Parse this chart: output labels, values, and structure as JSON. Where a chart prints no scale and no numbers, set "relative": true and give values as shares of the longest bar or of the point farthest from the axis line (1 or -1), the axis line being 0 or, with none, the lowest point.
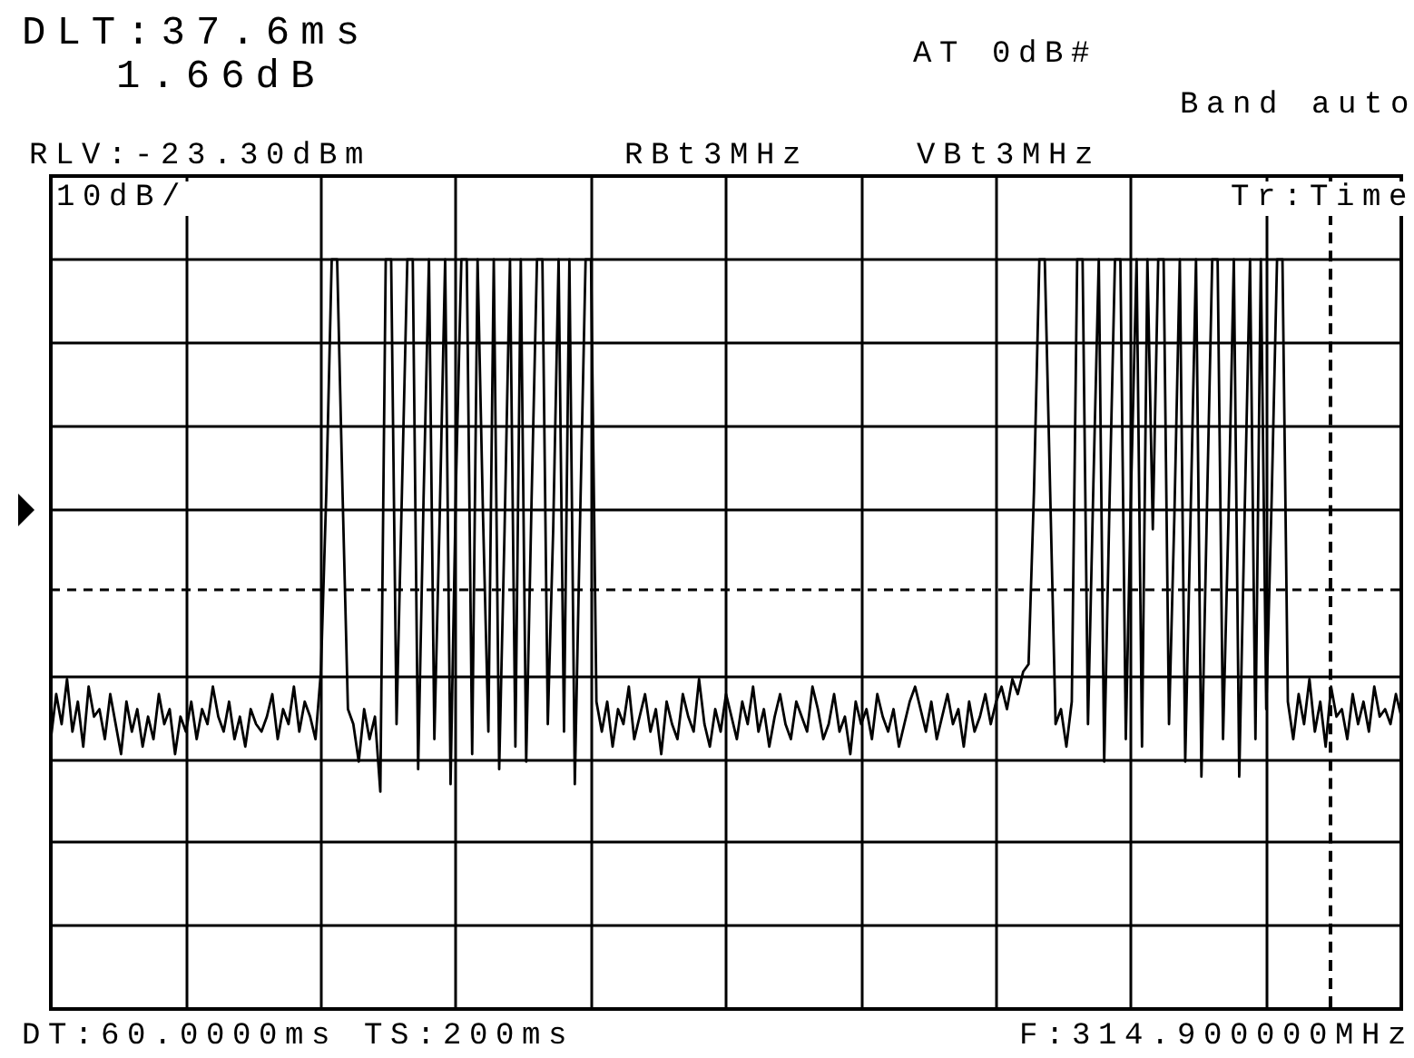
{
  "chart_data": {
    "type": "line",
    "relative": true,
    "annotations": [
      "DLT:37.6ms",
      "1.66dB",
      "RLV:-23.30dBm",
      "AT 0dB#",
      "Band auto",
      "RBt3MHz",
      "VBt3MHz",
      "10dB/",
      "Tr:Time",
      "DT:60.0000ms TS:200ms",
      "F:314.900000MHz"
    ],
    "categories": [
      null,
      null,
      null,
      null,
      null,
      null,
      null,
      null,
      null,
      null,
      null,
      null,
      null,
      null,
      null,
      null,
      null,
      null,
      null,
      null,
      null,
      null,
      null,
      null,
      null,
      null,
      null,
      null,
      null,
      null,
      null,
      null,
      null,
      null,
      null,
      null,
      null,
      null,
      null,
      null,
      null,
      null,
      null,
      null,
      null,
      null,
      null,
      null,
      null,
      null,
      null,
      null,
      null,
      null,
      null,
      null,
      null,
      null,
      null,
      null,
      null,
      null,
      null,
      null,
      null,
      null,
      null,
      null,
      null,
      null,
      null,
      null,
      null,
      null,
      null,
      null,
      null,
      null,
      null,
      null,
      null,
      null,
      null,
      null,
      null,
      null,
      null,
      null,
      null,
      null,
      null,
      null,
      null,
      null,
      null,
      null,
      null,
      null,
      null,
      null,
      null,
      null,
      null,
      null,
      null,
      null,
      null,
      null,
      null,
      null,
      null,
      null,
      null,
      null,
      null,
      null,
      null,
      null,
      null,
      null,
      null,
      null,
      null,
      null,
      null,
      null,
      null,
      null,
      null,
      null,
      null,
      null,
      null,
      null,
      null,
      null,
      null,
      null,
      null,
      null,
      null,
      null,
      null,
      null,
      null,
      null,
      null,
      null,
      null,
      null,
      null,
      null,
      null,
      null,
      null,
      null,
      null,
      null,
      null,
      null,
      null,
      null,
      null,
      null,
      null,
      null,
      null,
      null,
      null,
      null,
      null,
      null,
      null,
      null,
      null,
      null,
      null,
      null,
      null,
      null,
      null,
      null,
      null,
      null,
      null,
      null,
      null,
      null,
      null,
      null,
      null,
      null,
      null,
      null,
      null,
      null,
      null,
      null,
      null,
      null,
      null,
      null,
      null,
      null,
      null,
      null,
      null,
      null,
      null,
      null,
      null,
      null,
      null,
      null,
      null,
      null,
      null,
      null,
      null,
      null,
      null,
      null,
      null,
      null,
      null,
      null,
      null,
      null,
      null,
      null,
      null,
      null,
      null,
      null,
      null,
      null,
      null,
      null,
      null,
      null,
      null,
      null,
      null,
      null,
      null,
      null,
      null,
      null,
      null,
      null,
      null
    ],
    "grid": true,
    "ref_lines": [
      {
        "axis": "y",
        "value": 0.556,
        "line_style": "dashed",
        "color": "#000000"
      }
    ],
    "series": [
      {
        "color": "#000000",
        "values": [
          0.36,
          0.42,
          0.38,
          0.44,
          0.37,
          0.41,
          0.35,
          0.43,
          0.39,
          0.4,
          0.36,
          0.42,
          0.38,
          0.34,
          0.41,
          0.37,
          0.4,
          0.35,
          0.39,
          0.36,
          0.42,
          0.38,
          0.4,
          0.34,
          0.39,
          0.37,
          0.41,
          0.36,
          0.4,
          0.38,
          0.43,
          0.39,
          0.37,
          0.41,
          0.36,
          0.39,
          0.35,
          0.4,
          0.38,
          0.37,
          0.39,
          0.42,
          0.36,
          0.4,
          0.38,
          0.43,
          0.37,
          0.41,
          0.39,
          0.36,
          0.45,
          0.69,
          1,
          1,
          0.69,
          0.4,
          0.38,
          0.33,
          0.4,
          0.36,
          0.39,
          0.29,
          1,
          1,
          0.38,
          0.69,
          1,
          1,
          0.32,
          0.68,
          1,
          0.36,
          0.66,
          1,
          0.3,
          0.7,
          1,
          1,
          0.34,
          1,
          0.66,
          0.37,
          1,
          0.32,
          0.64,
          1,
          0.35,
          1,
          0.33,
          0.68,
          1,
          1,
          0.38,
          0.64,
          1,
          0.37,
          1,
          0.3,
          0.66,
          1,
          1,
          0.41,
          0.37,
          0.41,
          0.35,
          0.4,
          0.38,
          0.43,
          0.36,
          0.39,
          0.42,
          0.37,
          0.4,
          0.34,
          0.41,
          0.38,
          0.36,
          0.42,
          0.39,
          0.37,
          0.44,
          0.38,
          0.35,
          0.4,
          0.37,
          0.42,
          0.39,
          0.36,
          0.41,
          0.38,
          0.43,
          0.37,
          0.4,
          0.35,
          0.39,
          0.42,
          0.38,
          0.36,
          0.41,
          0.39,
          0.37,
          0.43,
          0.4,
          0.36,
          0.38,
          0.42,
          0.37,
          0.39,
          0.34,
          0.41,
          0.38,
          0.4,
          0.36,
          0.42,
          0.39,
          0.37,
          0.4,
          0.35,
          0.38,
          0.41,
          0.43,
          0.4,
          0.37,
          0.41,
          0.36,
          0.39,
          0.42,
          0.38,
          0.4,
          0.35,
          0.41,
          0.37,
          0.39,
          0.42,
          0.38,
          0.41,
          0.43,
          0.4,
          0.44,
          0.42,
          0.45,
          0.46,
          0.69,
          1,
          1,
          0.69,
          0.38,
          0.4,
          0.35,
          0.41,
          1,
          1,
          0.38,
          0.7,
          1,
          0.33,
          0.68,
          1,
          1,
          0.36,
          0.7,
          1,
          0.35,
          1,
          0.64,
          1,
          1,
          0.38,
          0.66,
          1,
          0.33,
          0.66,
          1,
          0.31,
          0.66,
          1,
          1,
          0.36,
          0.65,
          1,
          0.31,
          0.66,
          1,
          0.36,
          1,
          0.4,
          0.68,
          1,
          1,
          0.41,
          0.36,
          0.42,
          0.38,
          0.44,
          0.37,
          0.41,
          0.35,
          0.43,
          0.39,
          0.4,
          0.36,
          0.42,
          0.38,
          0.41,
          0.37,
          0.43,
          0.39,
          0.4,
          0.38,
          0.42,
          0.39
        ]
      }
    ]
  }
}
